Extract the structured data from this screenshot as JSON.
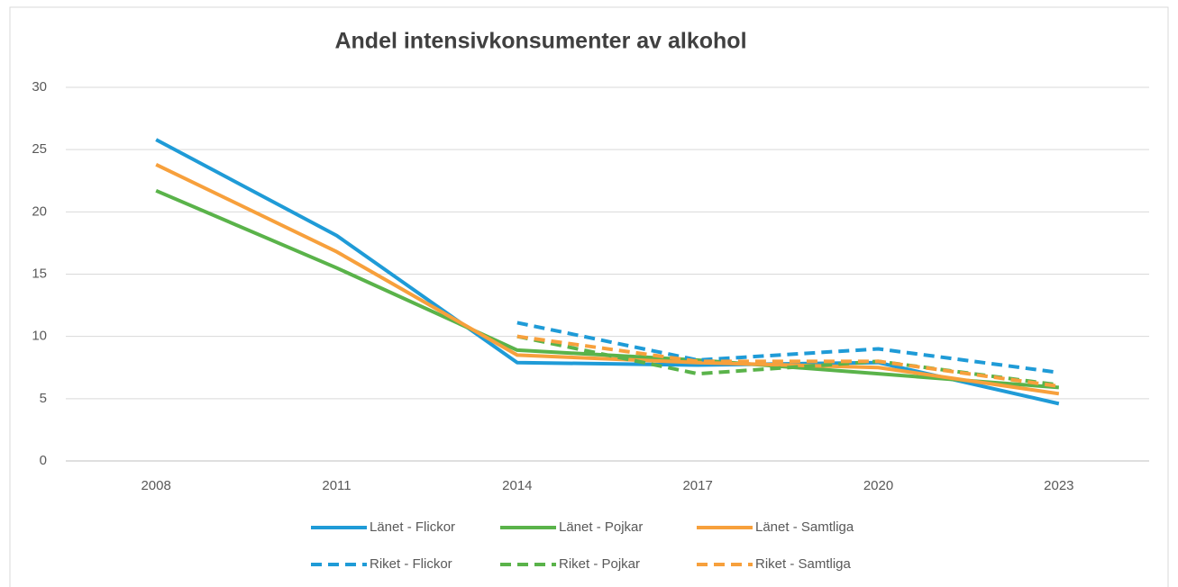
{
  "chart_data": {
    "type": "line",
    "title": "Andel intensivkonsumenter av alkohol",
    "categories": [
      "2008",
      "2011",
      "2014",
      "2017",
      "2020",
      "2023"
    ],
    "series": [
      {
        "name": "Länet - Flickor",
        "color": "#1f9bd7",
        "line_style": "solid",
        "values": [
          25.8,
          18.1,
          7.9,
          7.7,
          7.9,
          4.6
        ]
      },
      {
        "name": "Länet - Pojkar",
        "color": "#5ab34a",
        "line_style": "solid",
        "values": [
          21.7,
          15.5,
          8.9,
          8.1,
          7.0,
          5.9
        ]
      },
      {
        "name": "Länet - Samtliga",
        "color": "#f7a03c",
        "line_style": "solid",
        "values": [
          23.8,
          16.8,
          8.5,
          7.9,
          7.5,
          5.4
        ]
      },
      {
        "name": "Riket - Flickor",
        "color": "#1f9bd7",
        "line_style": "dashed",
        "values": [
          null,
          null,
          11.1,
          8.1,
          9.0,
          7.1
        ]
      },
      {
        "name": "Riket - Pojkar",
        "color": "#5ab34a",
        "line_style": "dashed",
        "values": [
          null,
          null,
          10.0,
          7.0,
          8.0,
          6.1
        ]
      },
      {
        "name": "Riket - Samtliga",
        "color": "#f7a03c",
        "line_style": "dashed",
        "values": [
          null,
          null,
          10.0,
          8.0,
          8.0,
          6.0
        ]
      }
    ],
    "ylim": [
      0,
      30
    ],
    "yticks": [
      0,
      5,
      10,
      15,
      20,
      25,
      30
    ],
    "grid": true,
    "legend": "bottom"
  }
}
